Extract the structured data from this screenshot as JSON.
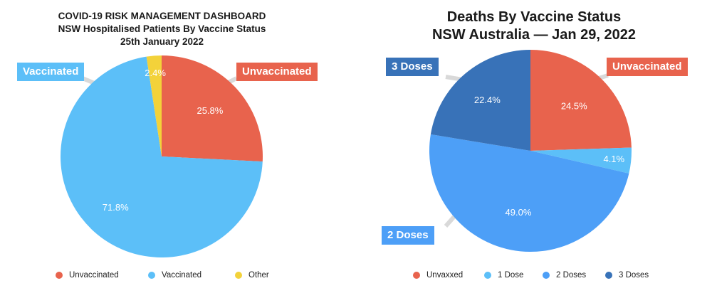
{
  "chart_data": [
    {
      "type": "pie",
      "title_lines": [
        "COVID-19 RISK MANAGEMENT DASHBOARD",
        "NSW Hospitalised Patients By Vaccine Status",
        "25th January 2022"
      ],
      "slices": [
        {
          "name": "Unvaccinated",
          "value": 25.8,
          "label": "25.8%",
          "color": "#e8634d"
        },
        {
          "name": "Vaccinated",
          "value": 71.8,
          "label": "71.8%",
          "color": "#5cbff8"
        },
        {
          "name": "Other",
          "value": 2.4,
          "label": "2.4%",
          "color": "#f3d23a"
        }
      ],
      "callouts": [
        {
          "text": "Vaccinated",
          "color": "#5cbff8",
          "slice": 1
        },
        {
          "text": "Unvaccinated",
          "color": "#e8634d",
          "slice": 0
        }
      ],
      "legend": [
        "Unvaccinated",
        "Vaccinated",
        "Other"
      ],
      "legend_placement": "bottom"
    },
    {
      "type": "pie",
      "title_lines": [
        "Deaths By Vaccine Status",
        "NSW Australia — Jan 29, 2022"
      ],
      "slices": [
        {
          "name": "Unvaxxed",
          "value": 24.5,
          "label": "24.5%",
          "color": "#e8634d"
        },
        {
          "name": "1 Dose",
          "value": 4.1,
          "label": "4.1%",
          "color": "#5cbff8"
        },
        {
          "name": "2 Doses",
          "value": 49.0,
          "label": "49.0%",
          "color": "#4d9ff7"
        },
        {
          "name": "3 Doses",
          "value": 22.4,
          "label": "22.4%",
          "color": "#3872b8"
        }
      ],
      "callouts": [
        {
          "text": "3 Doses",
          "color": "#3872b8",
          "slice": 3
        },
        {
          "text": "Unvaccinated",
          "color": "#e8634d",
          "slice": 0
        },
        {
          "text": "2 Doses",
          "color": "#4d9ff7",
          "slice": 2
        }
      ],
      "legend": [
        "Unvaxxed",
        "1 Dose",
        "2 Doses",
        "3 Doses"
      ],
      "legend_placement": "bottom"
    }
  ]
}
